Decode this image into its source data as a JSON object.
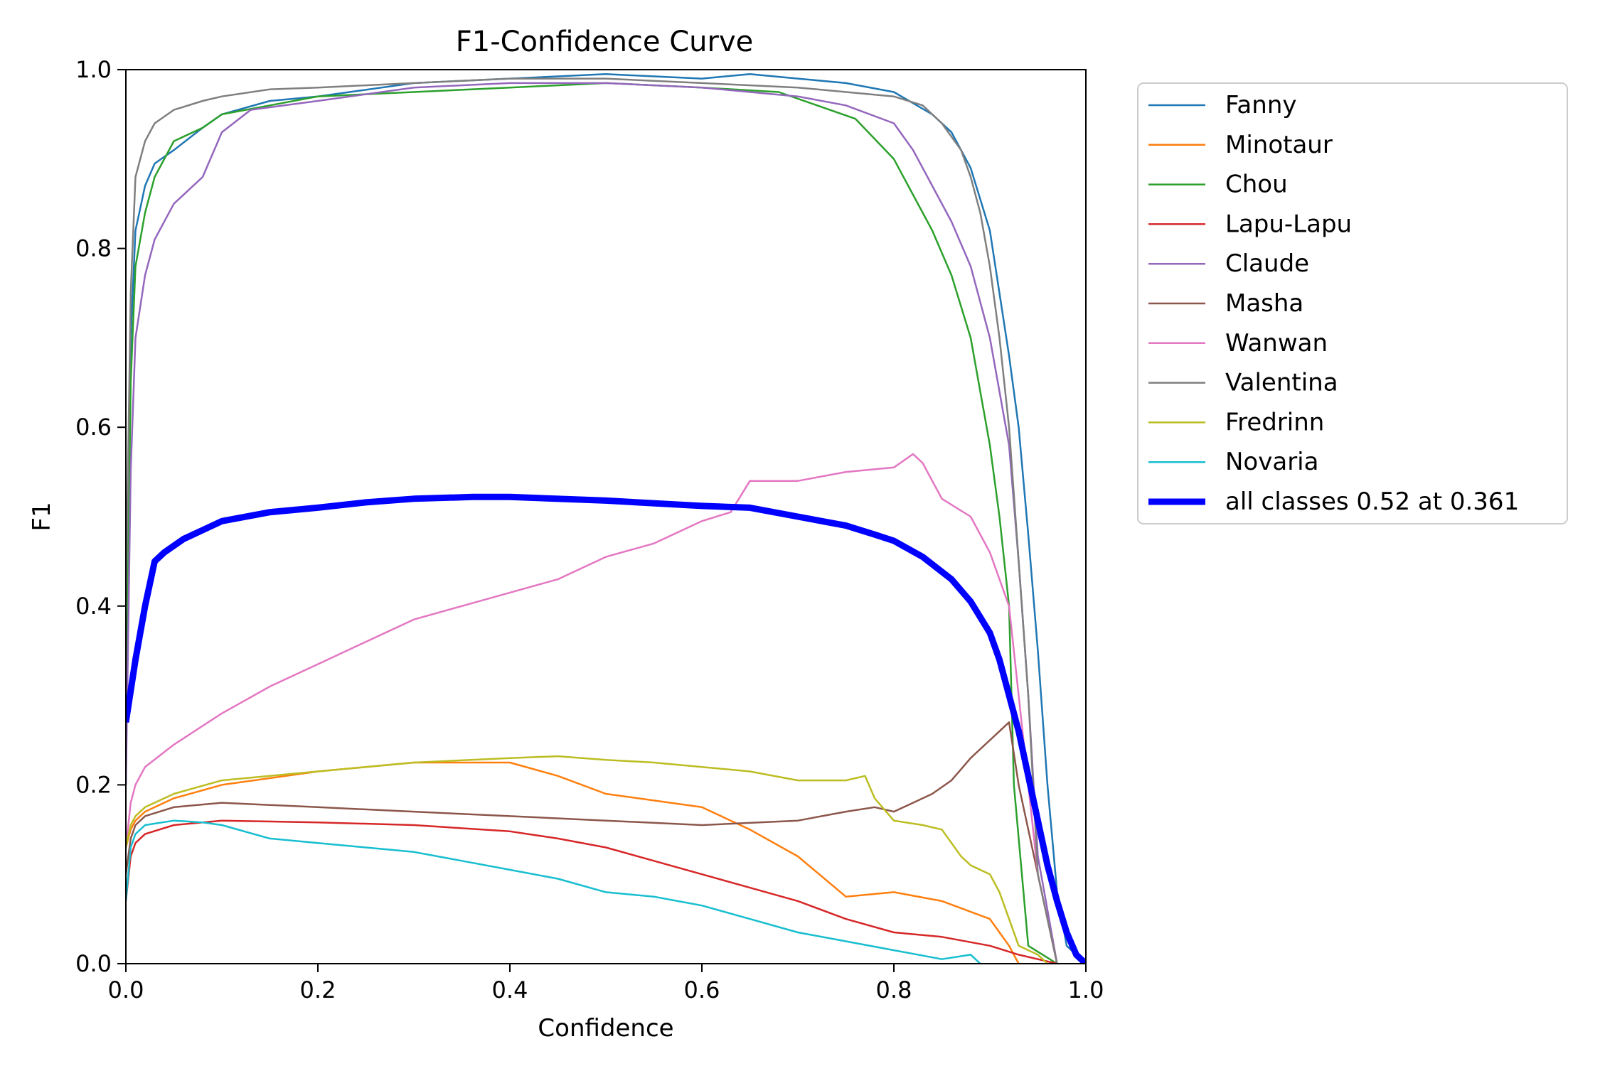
{
  "chart_data": {
    "type": "line",
    "title": "F1-Confidence Curve",
    "xlabel": "Confidence",
    "ylabel": "F1",
    "xlim": [
      0,
      1
    ],
    "ylim": [
      0,
      1
    ],
    "xticks": [
      "0.0",
      "0.2",
      "0.4",
      "0.6",
      "0.8",
      "1.0"
    ],
    "yticks": [
      "0.0",
      "0.2",
      "0.4",
      "0.6",
      "0.8",
      "1.0"
    ],
    "grid": false,
    "legend_position": "outside-top-right",
    "series": [
      {
        "name": "Fanny",
        "color": "#1f77b4",
        "x": [
          0.0,
          0.005,
          0.01,
          0.02,
          0.03,
          0.05,
          0.08,
          0.1,
          0.15,
          0.2,
          0.3,
          0.4,
          0.5,
          0.6,
          0.65,
          0.7,
          0.75,
          0.8,
          0.84,
          0.86,
          0.88,
          0.9,
          0.91,
          0.92,
          0.93,
          0.94,
          0.95,
          0.96,
          0.97,
          0.98,
          1.0
        ],
        "y": [
          0.2,
          0.7,
          0.82,
          0.87,
          0.895,
          0.91,
          0.935,
          0.95,
          0.965,
          0.97,
          0.985,
          0.99,
          0.995,
          0.99,
          0.995,
          0.99,
          0.985,
          0.975,
          0.95,
          0.93,
          0.89,
          0.82,
          0.75,
          0.68,
          0.6,
          0.48,
          0.35,
          0.2,
          0.08,
          0.02,
          0.0
        ]
      },
      {
        "name": "Minotaur",
        "color": "#ff7f0e",
        "x": [
          0.0,
          0.005,
          0.01,
          0.02,
          0.05,
          0.1,
          0.2,
          0.3,
          0.4,
          0.45,
          0.5,
          0.6,
          0.65,
          0.7,
          0.75,
          0.8,
          0.85,
          0.9,
          0.92,
          0.93
        ],
        "y": [
          0.13,
          0.15,
          0.16,
          0.17,
          0.185,
          0.2,
          0.215,
          0.225,
          0.225,
          0.21,
          0.19,
          0.175,
          0.15,
          0.12,
          0.075,
          0.08,
          0.07,
          0.05,
          0.02,
          0.0
        ]
      },
      {
        "name": "Chou",
        "color": "#2ca02c",
        "x": [
          0.0,
          0.005,
          0.01,
          0.02,
          0.03,
          0.05,
          0.08,
          0.1,
          0.15,
          0.2,
          0.3,
          0.4,
          0.5,
          0.6,
          0.68,
          0.72,
          0.76,
          0.8,
          0.82,
          0.84,
          0.86,
          0.88,
          0.9,
          0.91,
          0.92,
          0.925,
          0.94,
          0.97
        ],
        "y": [
          0.25,
          0.65,
          0.78,
          0.84,
          0.88,
          0.92,
          0.935,
          0.95,
          0.96,
          0.97,
          0.975,
          0.98,
          0.985,
          0.98,
          0.975,
          0.96,
          0.945,
          0.9,
          0.86,
          0.82,
          0.77,
          0.7,
          0.58,
          0.5,
          0.4,
          0.2,
          0.02,
          0.0
        ]
      },
      {
        "name": "Lapu-Lapu",
        "color": "#d62728",
        "x": [
          0.0,
          0.005,
          0.01,
          0.02,
          0.05,
          0.1,
          0.2,
          0.3,
          0.4,
          0.45,
          0.5,
          0.55,
          0.6,
          0.65,
          0.7,
          0.75,
          0.8,
          0.85,
          0.9,
          0.93,
          0.95,
          0.97
        ],
        "y": [
          0.07,
          0.12,
          0.135,
          0.145,
          0.155,
          0.16,
          0.158,
          0.155,
          0.148,
          0.14,
          0.13,
          0.115,
          0.1,
          0.085,
          0.07,
          0.05,
          0.035,
          0.03,
          0.02,
          0.01,
          0.005,
          0.0
        ]
      },
      {
        "name": "Claude",
        "color": "#9467bd",
        "x": [
          0.0,
          0.005,
          0.01,
          0.02,
          0.03,
          0.05,
          0.08,
          0.1,
          0.13,
          0.2,
          0.3,
          0.4,
          0.5,
          0.6,
          0.7,
          0.75,
          0.8,
          0.82,
          0.84,
          0.86,
          0.88,
          0.9,
          0.92,
          0.93,
          0.94,
          0.95,
          0.97
        ],
        "y": [
          0.2,
          0.55,
          0.7,
          0.77,
          0.81,
          0.85,
          0.88,
          0.93,
          0.955,
          0.965,
          0.98,
          0.985,
          0.985,
          0.98,
          0.97,
          0.96,
          0.94,
          0.91,
          0.87,
          0.83,
          0.78,
          0.7,
          0.58,
          0.45,
          0.3,
          0.12,
          0.0
        ]
      },
      {
        "name": "Masha",
        "color": "#8c564b",
        "x": [
          0.0,
          0.005,
          0.01,
          0.02,
          0.05,
          0.1,
          0.2,
          0.3,
          0.4,
          0.5,
          0.6,
          0.7,
          0.75,
          0.78,
          0.8,
          0.82,
          0.84,
          0.86,
          0.88,
          0.9,
          0.91,
          0.92,
          0.93,
          0.94,
          0.95,
          0.96,
          0.97
        ],
        "y": [
          0.1,
          0.14,
          0.155,
          0.165,
          0.175,
          0.18,
          0.175,
          0.17,
          0.165,
          0.16,
          0.155,
          0.16,
          0.17,
          0.175,
          0.17,
          0.18,
          0.19,
          0.205,
          0.23,
          0.25,
          0.26,
          0.27,
          0.2,
          0.15,
          0.1,
          0.05,
          0.0
        ]
      },
      {
        "name": "Wanwan",
        "color": "#e377c2",
        "x": [
          0.0,
          0.005,
          0.01,
          0.02,
          0.05,
          0.1,
          0.15,
          0.2,
          0.25,
          0.3,
          0.35,
          0.4,
          0.45,
          0.5,
          0.55,
          0.6,
          0.63,
          0.65,
          0.7,
          0.75,
          0.8,
          0.82,
          0.83,
          0.85,
          0.88,
          0.9,
          0.92,
          0.93,
          0.95,
          0.97
        ],
        "y": [
          0.13,
          0.18,
          0.2,
          0.22,
          0.245,
          0.28,
          0.31,
          0.335,
          0.36,
          0.385,
          0.4,
          0.415,
          0.43,
          0.455,
          0.47,
          0.495,
          0.505,
          0.54,
          0.54,
          0.55,
          0.555,
          0.57,
          0.56,
          0.52,
          0.5,
          0.46,
          0.4,
          0.3,
          0.1,
          0.0
        ]
      },
      {
        "name": "Valentina",
        "color": "#7f7f7f",
        "x": [
          0.0,
          0.005,
          0.01,
          0.02,
          0.03,
          0.05,
          0.08,
          0.1,
          0.15,
          0.2,
          0.3,
          0.4,
          0.5,
          0.6,
          0.7,
          0.8,
          0.83,
          0.85,
          0.87,
          0.88,
          0.89,
          0.9,
          0.91,
          0.92,
          0.93,
          0.94,
          0.95,
          0.97
        ],
        "y": [
          0.4,
          0.75,
          0.88,
          0.92,
          0.94,
          0.955,
          0.965,
          0.97,
          0.978,
          0.98,
          0.985,
          0.99,
          0.99,
          0.985,
          0.98,
          0.97,
          0.96,
          0.94,
          0.91,
          0.88,
          0.84,
          0.78,
          0.7,
          0.6,
          0.45,
          0.3,
          0.1,
          0.0
        ]
      },
      {
        "name": "Fredrinn",
        "color": "#bcbd22",
        "x": [
          0.0,
          0.005,
          0.01,
          0.02,
          0.05,
          0.1,
          0.15,
          0.2,
          0.3,
          0.4,
          0.45,
          0.5,
          0.55,
          0.6,
          0.65,
          0.7,
          0.75,
          0.77,
          0.78,
          0.8,
          0.83,
          0.85,
          0.87,
          0.88,
          0.9,
          0.91,
          0.92,
          0.93,
          0.95,
          0.96
        ],
        "y": [
          0.13,
          0.155,
          0.165,
          0.175,
          0.19,
          0.205,
          0.21,
          0.215,
          0.225,
          0.23,
          0.232,
          0.228,
          0.225,
          0.22,
          0.215,
          0.205,
          0.205,
          0.21,
          0.185,
          0.16,
          0.155,
          0.15,
          0.12,
          0.11,
          0.1,
          0.08,
          0.05,
          0.02,
          0.01,
          0.0
        ]
      },
      {
        "name": "Novaria",
        "color": "#17becf",
        "x": [
          0.0,
          0.005,
          0.01,
          0.02,
          0.05,
          0.08,
          0.1,
          0.15,
          0.2,
          0.25,
          0.3,
          0.35,
          0.4,
          0.45,
          0.5,
          0.55,
          0.6,
          0.65,
          0.7,
          0.75,
          0.8,
          0.85,
          0.88,
          0.89
        ],
        "y": [
          0.07,
          0.13,
          0.145,
          0.155,
          0.16,
          0.158,
          0.155,
          0.14,
          0.135,
          0.13,
          0.125,
          0.115,
          0.105,
          0.095,
          0.08,
          0.075,
          0.065,
          0.05,
          0.035,
          0.025,
          0.015,
          0.005,
          0.01,
          0.0
        ]
      },
      {
        "name": "all classes 0.52 at 0.361",
        "color": "#0000ff",
        "bold": true,
        "x": [
          0.0,
          0.01,
          0.02,
          0.03,
          0.04,
          0.06,
          0.08,
          0.1,
          0.15,
          0.2,
          0.25,
          0.3,
          0.361,
          0.4,
          0.5,
          0.6,
          0.65,
          0.7,
          0.75,
          0.78,
          0.8,
          0.83,
          0.86,
          0.88,
          0.9,
          0.91,
          0.92,
          0.93,
          0.94,
          0.95,
          0.96,
          0.97,
          0.98,
          0.99,
          1.0
        ],
        "y": [
          0.27,
          0.34,
          0.4,
          0.45,
          0.46,
          0.475,
          0.485,
          0.495,
          0.505,
          0.51,
          0.516,
          0.52,
          0.522,
          0.522,
          0.518,
          0.512,
          0.51,
          0.5,
          0.49,
          0.48,
          0.473,
          0.455,
          0.43,
          0.405,
          0.37,
          0.34,
          0.3,
          0.26,
          0.21,
          0.16,
          0.11,
          0.07,
          0.035,
          0.01,
          0.0
        ]
      }
    ]
  }
}
